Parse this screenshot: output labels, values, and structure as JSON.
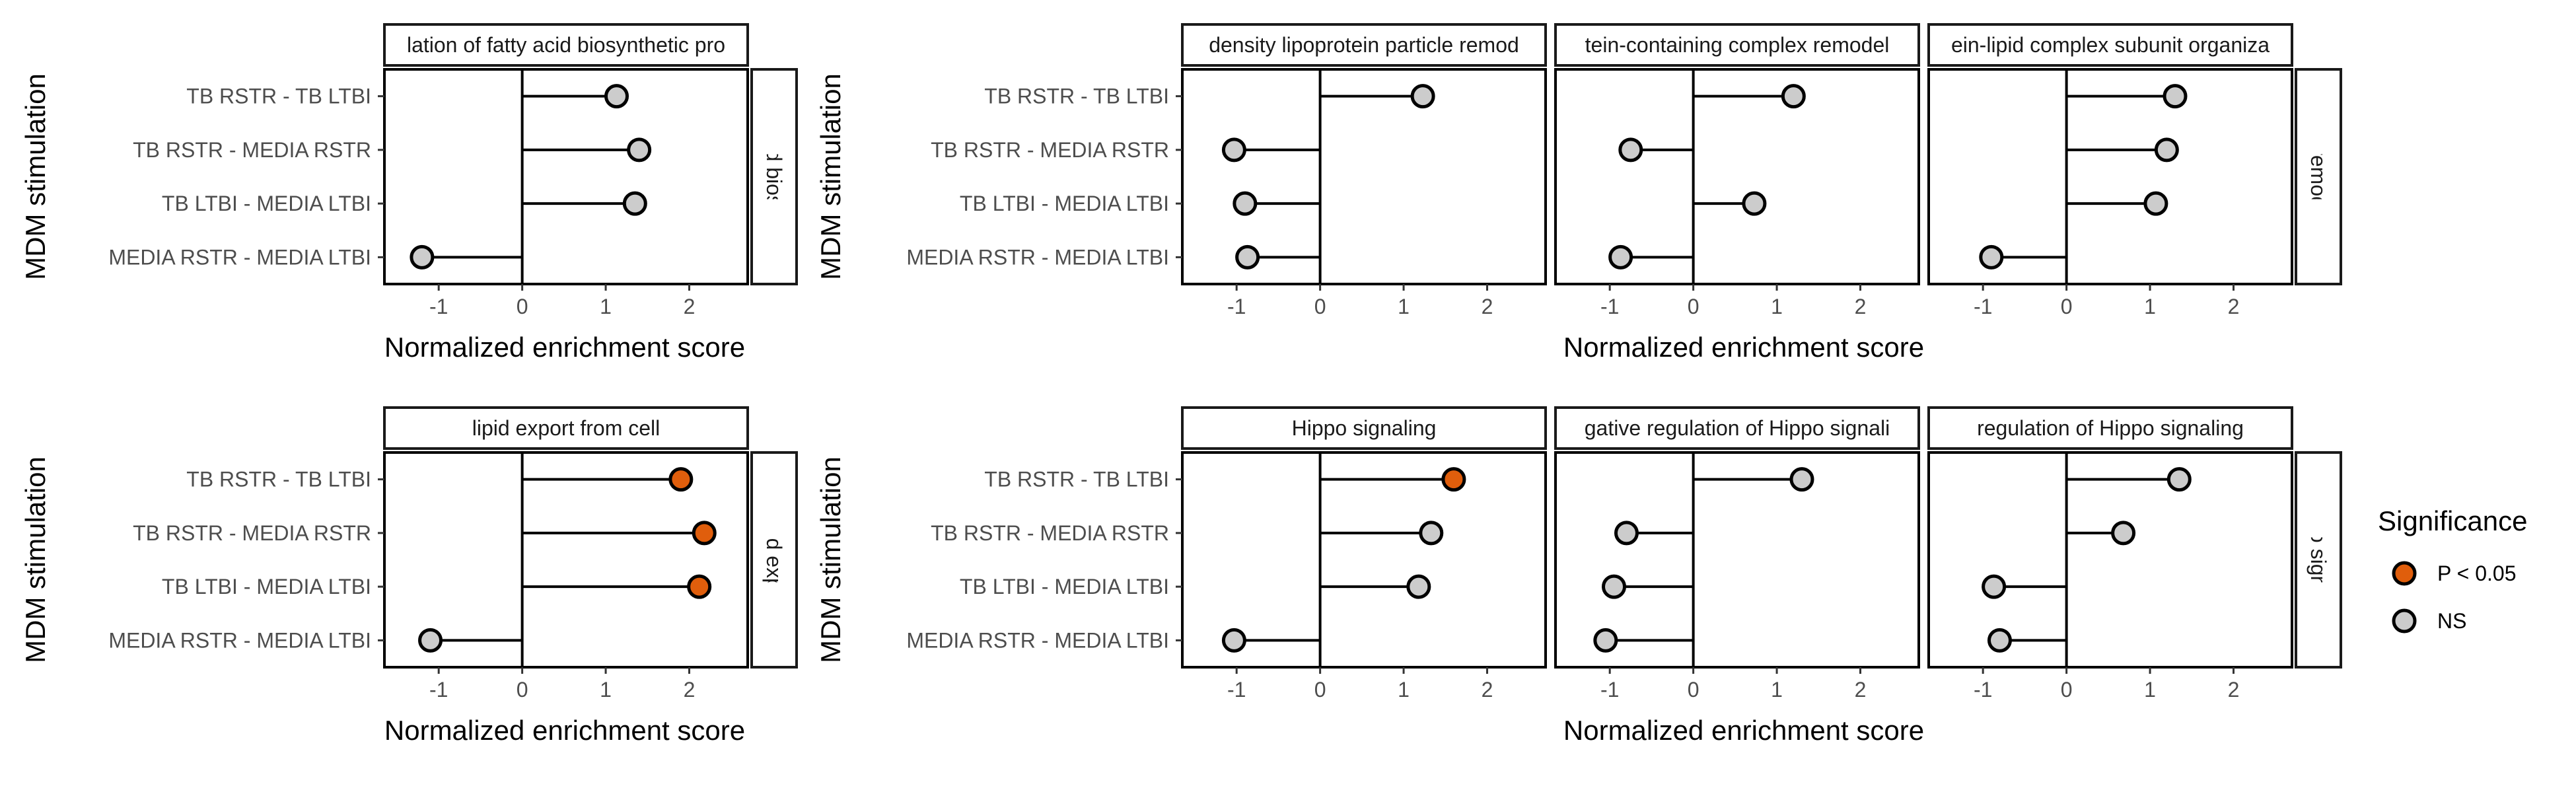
{
  "chart_data": {
    "type": "scatter",
    "subtype": "lollipop",
    "xlabel": "Normalized enrichment score",
    "ylabel": "MDM stimulation",
    "categories": [
      "TB RSTR - TB LTBI",
      "TB RSTR - MEDIA RSTR",
      "TB LTBI - MEDIA LTBI",
      "MEDIA RSTR - MEDIA LTBI"
    ],
    "x_ticks": [
      -1,
      0,
      1,
      2
    ],
    "xlim": [
      -1.65,
      2.7
    ],
    "grid": false,
    "legend": {
      "title": "Significance",
      "position": "right",
      "entries": [
        {
          "label": "P < 0.05",
          "color": "#e05e0c"
        },
        {
          "label": "NS",
          "color": "#cccccc"
        }
      ]
    },
    "colors": {
      "significant": "#e05e0c",
      "ns": "#cccccc",
      "stroke": "#000000"
    },
    "panels": [
      {
        "group": "Fatty acid biosynthesis",
        "row": 1,
        "title": "regulation of fatty acid biosynthetic process",
        "title_visible": "lation of fatty acid biosynthetic pro",
        "strip_label": "Fatty acid biosynthesis",
        "values": [
          1.13,
          1.4,
          1.35,
          -1.2
        ],
        "significant": [
          false,
          false,
          false,
          false
        ]
      },
      {
        "group": "HDL remodeling",
        "row": 1,
        "title": "high-density lipoprotein particle remodeling",
        "title_visible": "density lipoprotein particle remod",
        "values": [
          1.23,
          -1.03,
          -0.9,
          -0.87
        ],
        "significant": [
          false,
          false,
          false,
          false
        ]
      },
      {
        "group": "HDL remodeling",
        "row": 1,
        "title": "protein-containing complex remodeling",
        "title_visible": "tein-containing complex remodel",
        "values": [
          1.2,
          -0.75,
          0.73,
          -0.87
        ],
        "significant": [
          false,
          false,
          false,
          false
        ]
      },
      {
        "group": "HDL remodeling",
        "row": 1,
        "title": "protein-lipid complex subunit organization",
        "title_visible": "ein-lipid complex subunit organiza",
        "strip_label": "HDL remodeling",
        "values": [
          1.3,
          1.2,
          1.07,
          -0.9
        ],
        "significant": [
          false,
          false,
          false,
          false
        ]
      },
      {
        "group": "Lipid export",
        "row": 2,
        "title": "lipid export from cell",
        "title_visible": "lipid export from cell",
        "strip_label": "Lipid export",
        "values": [
          1.9,
          2.18,
          2.12,
          -1.1
        ],
        "significant": [
          true,
          true,
          true,
          false
        ]
      },
      {
        "group": "Hippo signaling",
        "row": 2,
        "title": "Hippo signaling",
        "title_visible": "Hippo signaling",
        "values": [
          1.6,
          1.33,
          1.18,
          -1.03
        ],
        "significant": [
          true,
          false,
          false,
          false
        ]
      },
      {
        "group": "Hippo signaling",
        "row": 2,
        "title": "negative regulation of Hippo signaling",
        "title_visible": "gative regulation of Hippo signali",
        "values": [
          1.3,
          -0.8,
          -0.95,
          -1.05
        ],
        "significant": [
          false,
          false,
          false,
          false
        ]
      },
      {
        "group": "Hippo signaling",
        "row": 2,
        "title": "regulation of Hippo signaling",
        "title_visible": "regulation of Hippo signaling",
        "strip_label": "Hippo signaling",
        "values": [
          1.35,
          0.68,
          -0.87,
          -0.8
        ],
        "significant": [
          false,
          false,
          false,
          false
        ]
      }
    ]
  }
}
